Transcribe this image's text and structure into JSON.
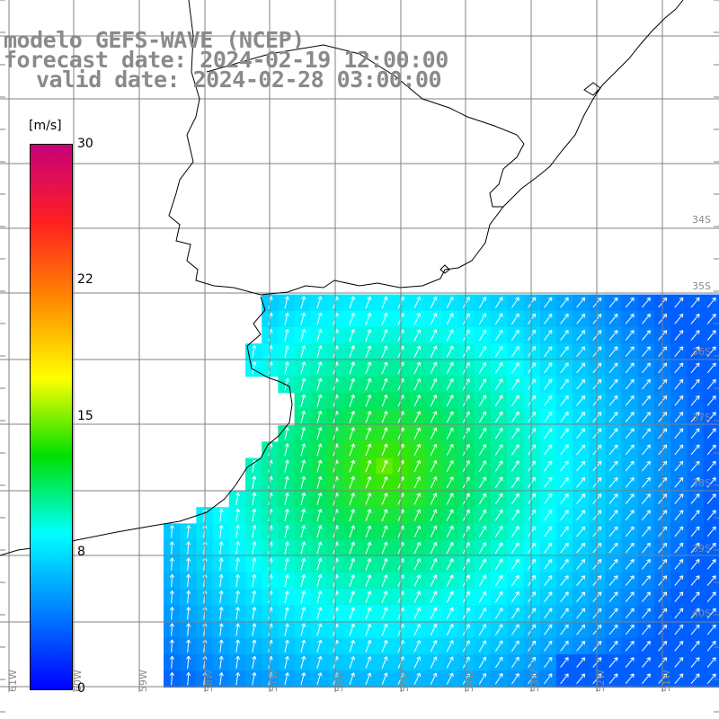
{
  "title": {
    "model": "modelo GEFS-WAVE (NCEP)",
    "forecast": "forecast date: 2024-02-19 12:00:00",
    "valid": "valid date: 2024-02-28 03:00:00"
  },
  "colorbar": {
    "unit": "[m/s]",
    "ticks": [
      "30",
      "22",
      "15",
      "8",
      "0"
    ],
    "colors": [
      "#c8007a",
      "#ff2020",
      "#ff8a00",
      "#ffff00",
      "#00e000",
      "#00ffff",
      "#0080ff",
      "#0000ff"
    ]
  },
  "latitude_labels": [
    "34S",
    "35S",
    "36S",
    "37S",
    "38S",
    "39S",
    "40S"
  ],
  "longitude_labels": [
    "61W",
    "60W",
    "59W",
    "58W",
    "57W",
    "56W",
    "55W",
    "54W",
    "53W",
    "52W",
    "51W"
  ],
  "colors": {
    "land": "#ffffff",
    "coast": "#000000",
    "grid": "#808080",
    "arrows": "#ffffff"
  }
}
